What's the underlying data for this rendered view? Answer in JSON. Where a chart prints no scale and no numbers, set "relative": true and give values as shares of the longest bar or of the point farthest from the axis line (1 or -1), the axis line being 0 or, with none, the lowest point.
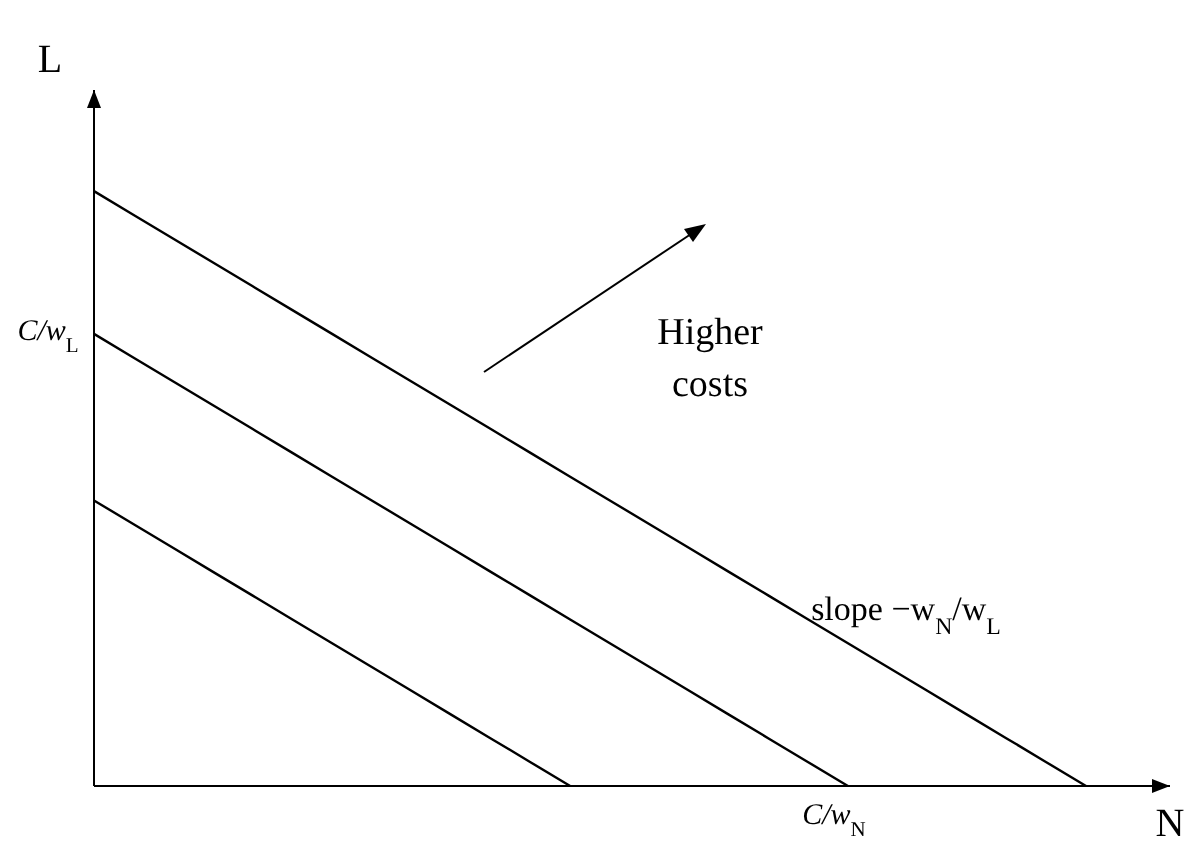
{
  "chart_data": {
    "type": "line",
    "relative": true,
    "xlabel": "N",
    "ylabel": "L",
    "categories": [
      null,
      null,
      null,
      null,
      null,
      null,
      null,
      null,
      null,
      null,
      null,
      null,
      null,
      null,
      null,
      null,
      null,
      null,
      null,
      null,
      null,
      null,
      null,
      null,
      null,
      null,
      null,
      null
    ],
    "series": [
      {
        "color": "#000000",
        "values": [
          0.48,
          0.44,
          0.4,
          0.36,
          0.32,
          0.28,
          0.24,
          0.2,
          0.16,
          0.12,
          0.08,
          0.04,
          0,
          null,
          null,
          null,
          null,
          null,
          null,
          null,
          null,
          null,
          null,
          null,
          null,
          null,
          null,
          null
        ]
      },
      {
        "color": "#000000",
        "values": [
          0.76,
          0.72,
          0.68,
          0.64,
          0.6,
          0.56,
          0.52,
          0.48,
          0.44,
          0.4,
          0.36,
          0.32,
          0.28,
          0.24,
          0.2,
          0.16,
          0.12,
          0.08,
          0.04,
          0,
          null,
          null,
          null,
          null,
          null,
          null,
          null,
          null
        ]
      },
      {
        "color": "#000000",
        "values": [
          1,
          0.96,
          0.92,
          0.88,
          0.84,
          0.8,
          0.76,
          0.72,
          0.68,
          0.64,
          0.6,
          0.56,
          0.52,
          0.48,
          0.44,
          0.4,
          0.36,
          0.32,
          0.28,
          0.24,
          0.2,
          0.16,
          0.12,
          0.08,
          0.04,
          0,
          null,
          null
        ]
      }
    ],
    "annotations": [
      "Higher costs",
      "slope −w$_{N}$/w$_{L}$",
      "C/w$_{L}$",
      "C/w$_{N}$"
    ]
  }
}
